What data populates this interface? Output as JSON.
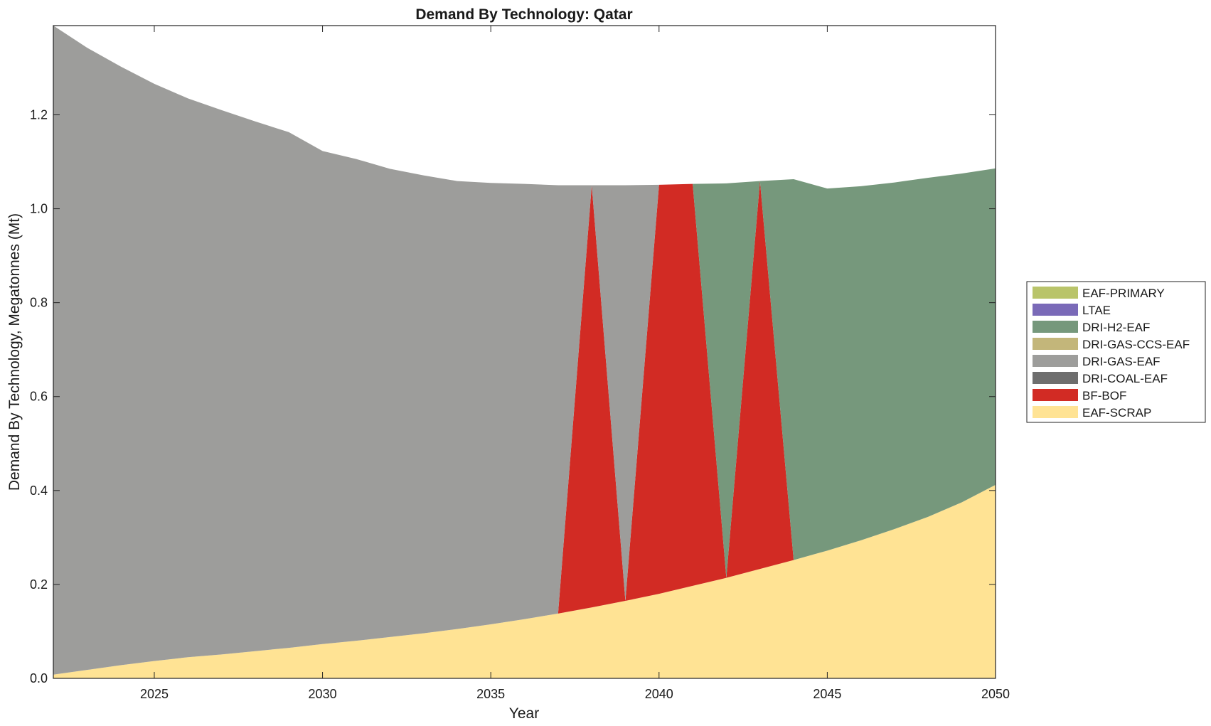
{
  "chart_data": {
    "type": "area",
    "title": "Demand By Technology: Qatar",
    "xlabel": "Year",
    "ylabel": "Demand By Technology, Megatonnes (Mt)",
    "xlim": [
      2022,
      2050
    ],
    "ylim": [
      0,
      1.39
    ],
    "xticks": [
      2025,
      2030,
      2035,
      2040,
      2045,
      2050
    ],
    "yticks": [
      0.0,
      0.2,
      0.4,
      0.6,
      0.8,
      1.0,
      1.2
    ],
    "ytick_labels": [
      "0.0",
      "0.2",
      "0.4",
      "0.6",
      "0.8",
      "1.0",
      "1.2"
    ],
    "grid": false,
    "legend_position": "right",
    "x": [
      2022,
      2023,
      2024,
      2025,
      2026,
      2027,
      2028,
      2029,
      2030,
      2031,
      2032,
      2033,
      2034,
      2035,
      2036,
      2037,
      2038,
      2039,
      2040,
      2041,
      2042,
      2043,
      2044,
      2045,
      2046,
      2047,
      2048,
      2049,
      2050
    ],
    "series": [
      {
        "name": "EAF-SCRAP",
        "color": "#FFE394",
        "values": [
          0.008,
          0.018,
          0.028,
          0.037,
          0.045,
          0.051,
          0.058,
          0.065,
          0.073,
          0.08,
          0.088,
          0.096,
          0.105,
          0.115,
          0.126,
          0.138,
          0.151,
          0.165,
          0.18,
          0.197,
          0.214,
          0.233,
          0.252,
          0.272,
          0.294,
          0.318,
          0.344,
          0.375,
          0.412
        ]
      },
      {
        "name": "BF-BOF",
        "color": "#D22B24",
        "values": [
          0,
          0,
          0,
          0,
          0,
          0,
          0,
          0,
          0,
          0,
          0,
          0,
          0,
          0,
          0,
          0,
          0.899,
          0,
          0.871,
          0.856,
          0,
          0.826,
          0,
          0,
          0,
          0,
          0,
          0,
          0
        ]
      },
      {
        "name": "DRI-COAL-EAF",
        "color": "#6E6E6E",
        "values": [
          0,
          0,
          0,
          0,
          0,
          0,
          0,
          0,
          0,
          0,
          0,
          0,
          0,
          0,
          0,
          0,
          0,
          0,
          0,
          0,
          0,
          0,
          0,
          0,
          0,
          0,
          0,
          0,
          0
        ]
      },
      {
        "name": "DRI-GAS-EAF",
        "color": "#9D9D9B",
        "values": [
          1.382,
          1.325,
          1.275,
          1.229,
          1.19,
          1.159,
          1.128,
          1.098,
          1.05,
          1.026,
          0.997,
          0.975,
          0.954,
          0.94,
          0.927,
          0.912,
          0,
          0.885,
          0,
          0,
          0,
          0,
          0,
          0,
          0,
          0,
          0,
          0,
          0
        ]
      },
      {
        "name": "DRI-GAS-CCS-EAF",
        "color": "#C3B67A",
        "values": [
          0,
          0,
          0,
          0,
          0,
          0,
          0,
          0,
          0,
          0,
          0,
          0,
          0,
          0,
          0,
          0,
          0,
          0,
          0,
          0,
          0,
          0,
          0,
          0,
          0,
          0,
          0,
          0,
          0
        ]
      },
      {
        "name": "DRI-H2-EAF",
        "color": "#76987C",
        "values": [
          0,
          0,
          0,
          0,
          0,
          0,
          0,
          0,
          0,
          0,
          0,
          0,
          0,
          0,
          0,
          0,
          0,
          0,
          0,
          0,
          0.84,
          0,
          0.811,
          0.771,
          0.754,
          0.738,
          0.722,
          0.7,
          0.674
        ]
      },
      {
        "name": "LTAE",
        "color": "#7A6AB8",
        "values": [
          0,
          0,
          0,
          0,
          0,
          0,
          0,
          0,
          0,
          0,
          0,
          0,
          0,
          0,
          0,
          0,
          0,
          0,
          0,
          0,
          0,
          0,
          0,
          0,
          0,
          0,
          0,
          0,
          0
        ]
      },
      {
        "name": "EAF-PRIMARY",
        "color": "#B9C46A",
        "values": [
          0,
          0,
          0,
          0,
          0,
          0,
          0,
          0,
          0,
          0,
          0,
          0,
          0,
          0,
          0,
          0,
          0,
          0,
          0,
          0,
          0,
          0,
          0,
          0,
          0,
          0,
          0,
          0,
          0
        ]
      }
    ],
    "legend_order": [
      "EAF-PRIMARY",
      "LTAE",
      "DRI-H2-EAF",
      "DRI-GAS-CCS-EAF",
      "DRI-GAS-EAF",
      "DRI-COAL-EAF",
      "BF-BOF",
      "EAF-SCRAP"
    ]
  }
}
